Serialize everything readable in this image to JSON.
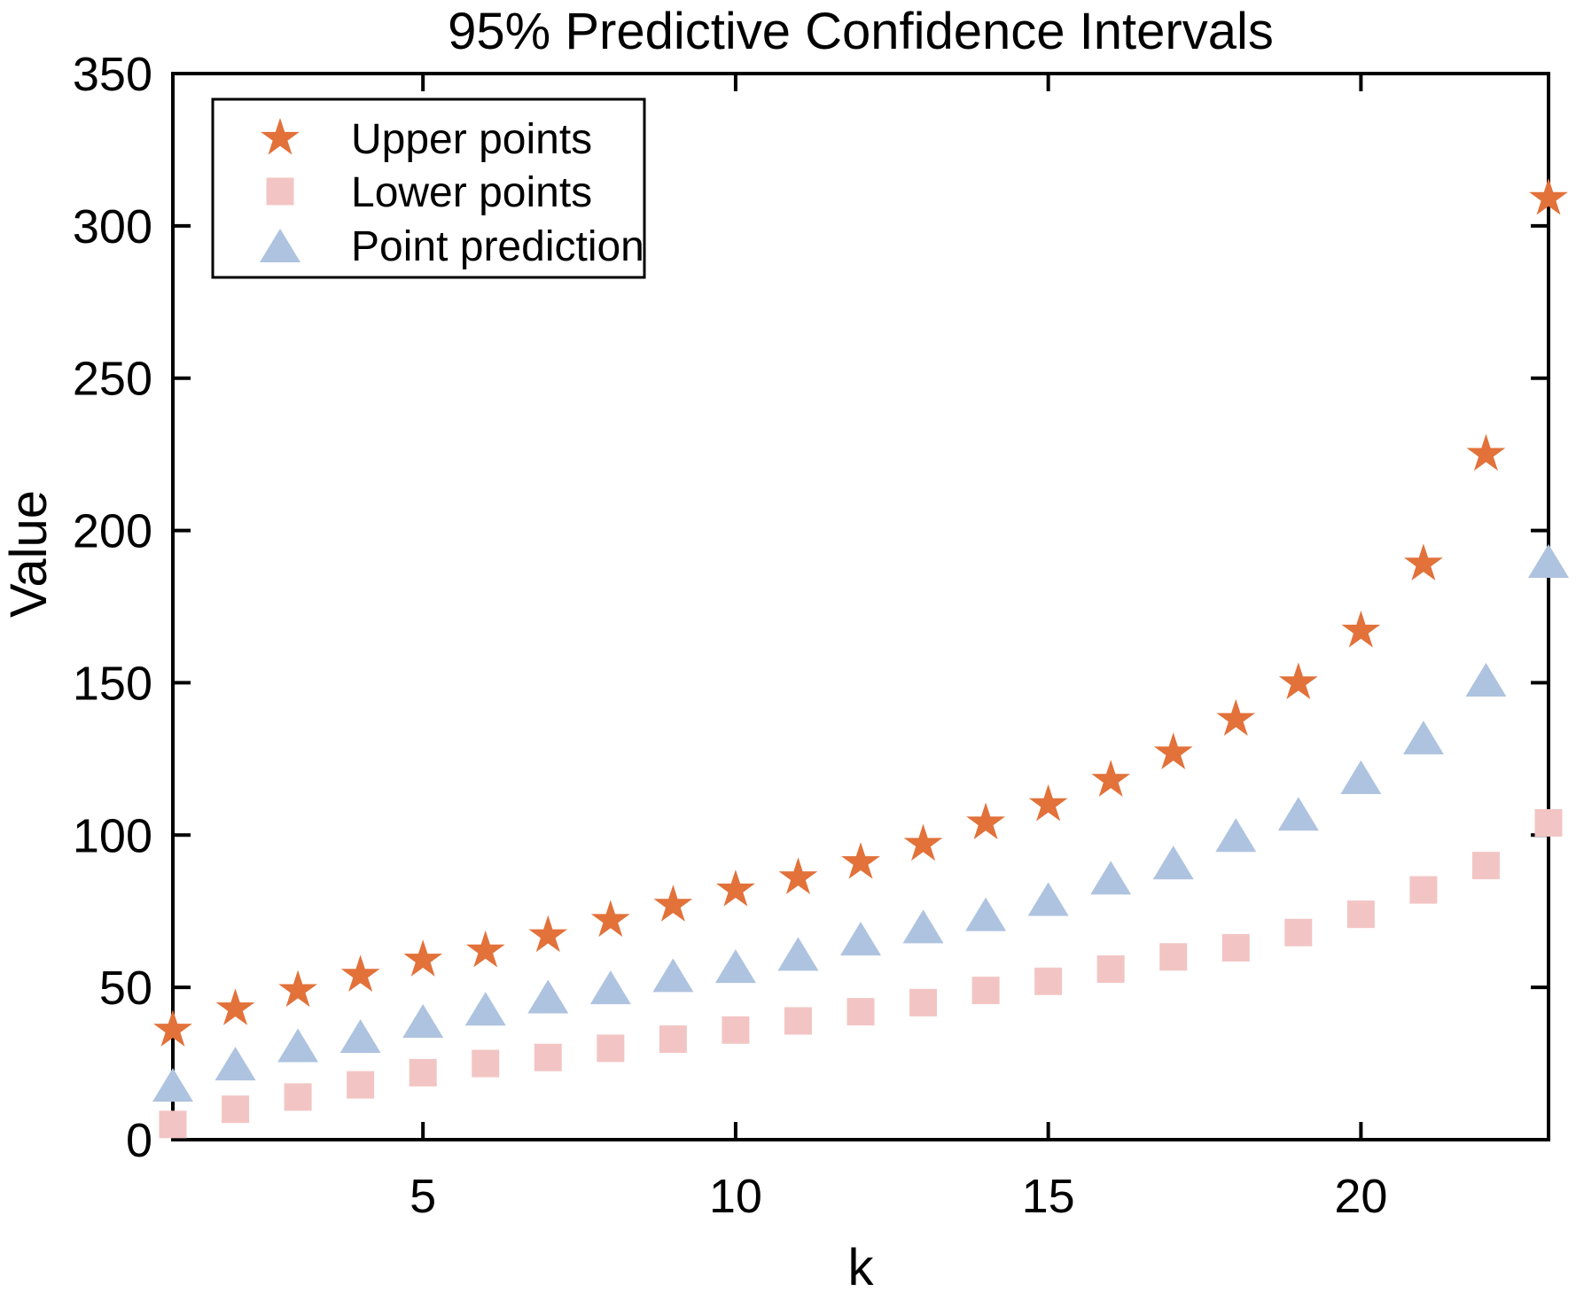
{
  "figure": {
    "title": "95% Predictive Confidence Intervals",
    "xlabel": "k",
    "ylabel": "Value"
  },
  "chart_data": {
    "type": "scatter",
    "title": "95% Predictive Confidence Intervals",
    "xlabel": "k",
    "ylabel": "Value",
    "x": [
      1,
      2,
      3,
      4,
      5,
      6,
      7,
      8,
      9,
      10,
      11,
      12,
      13,
      14,
      15,
      16,
      17,
      18,
      19,
      20,
      21,
      22,
      23
    ],
    "series": [
      {
        "name": "Upper points",
        "marker": "star",
        "color": "#e2713a",
        "values": [
          36,
          43,
          49,
          54,
          59,
          62,
          67,
          72,
          77,
          82,
          86,
          91,
          97,
          104,
          110,
          118,
          127,
          138,
          150,
          167,
          189,
          225,
          309
        ]
      },
      {
        "name": "Lower points",
        "marker": "square",
        "color": "#f2c5c4",
        "values": [
          5,
          10,
          14,
          18,
          22,
          25,
          27,
          30,
          33,
          36,
          39,
          42,
          45,
          49,
          52,
          56,
          60,
          63,
          68,
          74,
          82,
          90,
          104
        ]
      },
      {
        "name": "Point prediction",
        "marker": "triangle",
        "color": "#aec3df",
        "values": [
          18,
          25,
          31,
          34,
          39,
          43,
          47,
          50,
          54,
          57,
          61,
          66,
          70,
          74,
          79,
          86,
          91,
          100,
          107,
          119,
          132,
          151,
          190
        ]
      }
    ],
    "xlim": [
      1,
      23
    ],
    "ylim": [
      0,
      350
    ],
    "x_ticks": [
      5,
      10,
      15,
      20
    ],
    "y_ticks": [
      0,
      50,
      100,
      150,
      200,
      250,
      300,
      350
    ],
    "grid": false,
    "legend_position": "upper-left",
    "axes_color": "#000000",
    "background_color": "#ffffff"
  }
}
